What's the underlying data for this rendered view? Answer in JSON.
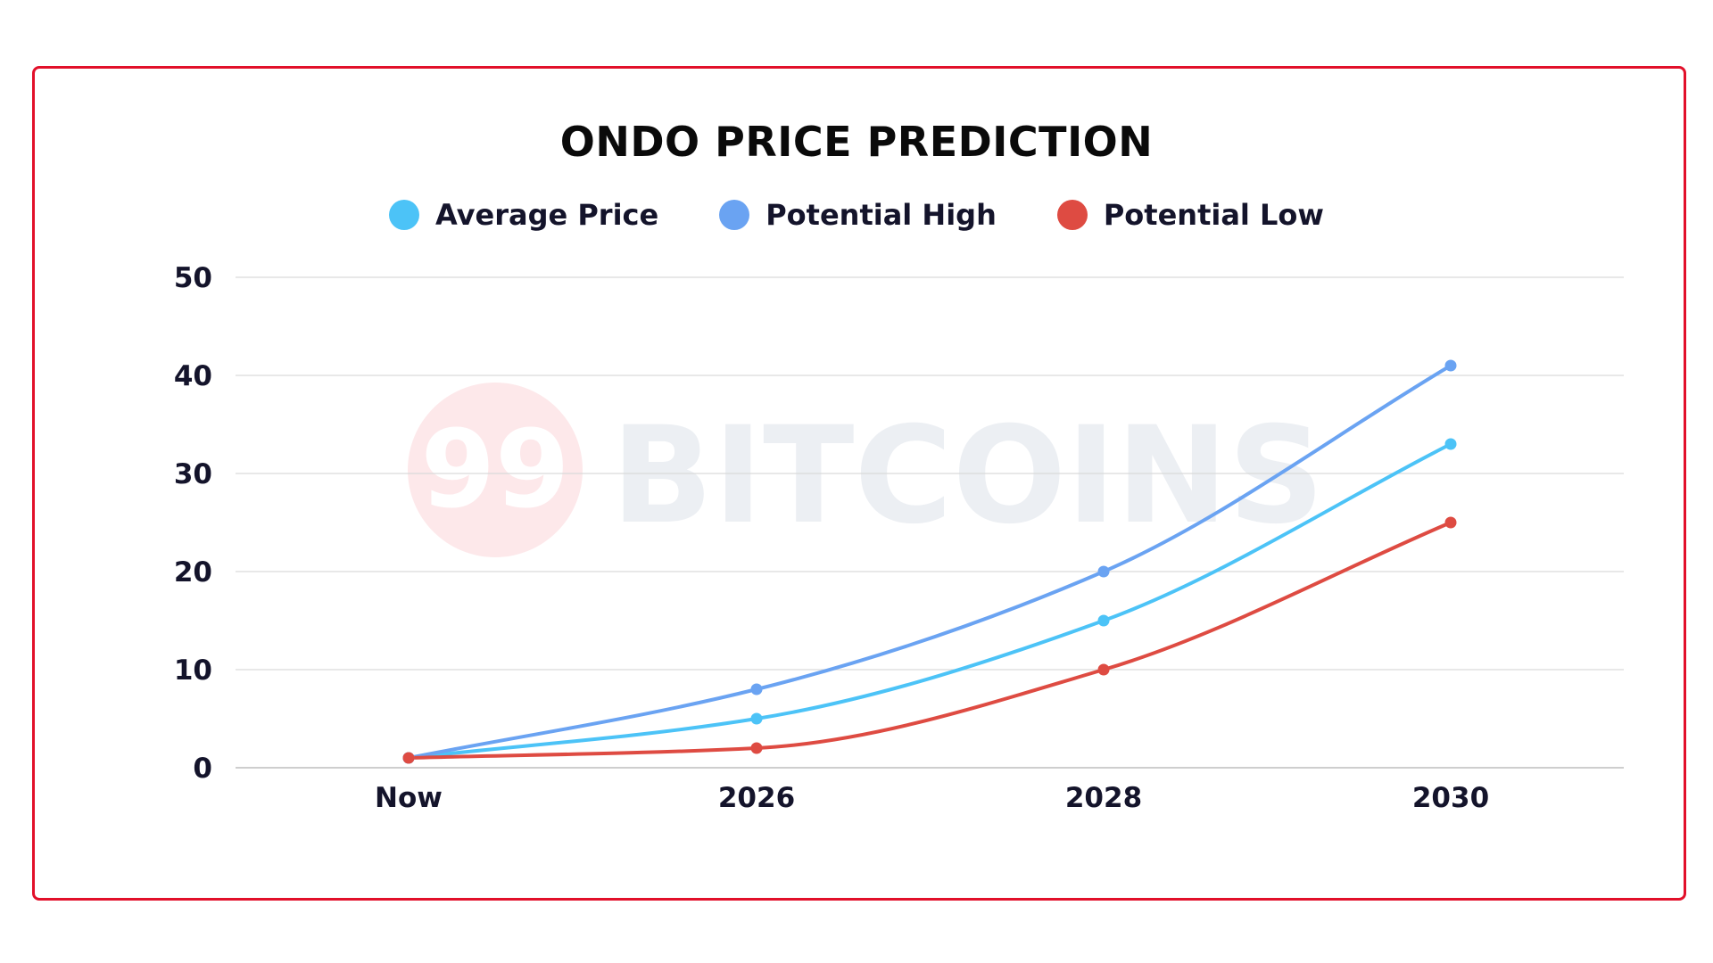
{
  "colors": {
    "frame": "#e2102a",
    "average": "#4cc3f7",
    "high": "#6aa3f2",
    "low": "#de4b42",
    "grid": "#d9d9d9",
    "watermark_logo": "#fde8ea",
    "watermark_text": "#eceff3"
  },
  "watermark": {
    "number": "99",
    "text": "BITCOINS"
  },
  "chart_data": {
    "type": "line",
    "title": "ONDO PRICE PREDICTION",
    "categories": [
      "Now",
      "2026",
      "2028",
      "2030"
    ],
    "series": [
      {
        "name": "Average Price",
        "color": "#4cc3f7",
        "values": [
          1,
          5,
          15,
          33
        ]
      },
      {
        "name": "Potential High",
        "color": "#6aa3f2",
        "values": [
          1,
          8,
          20,
          41
        ]
      },
      {
        "name": "Potential Low",
        "color": "#de4b42",
        "values": [
          1,
          2,
          10,
          25
        ]
      }
    ],
    "yticks": [
      "0",
      "10",
      "20",
      "30",
      "40",
      "50"
    ],
    "ylim": [
      0,
      50
    ],
    "xlabel": "",
    "ylabel": "",
    "grid": true,
    "legend_position": "top-center",
    "smooth": true
  }
}
